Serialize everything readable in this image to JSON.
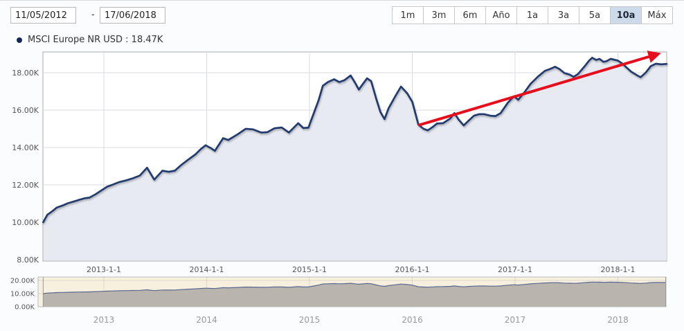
{
  "toolbar": {
    "date_from": "11/05/2012",
    "date_separator": "-",
    "date_to": "17/06/2018",
    "range_buttons": [
      {
        "label": "1m",
        "selected": false
      },
      {
        "label": "3m",
        "selected": false
      },
      {
        "label": "6m",
        "selected": false
      },
      {
        "label": "Año",
        "selected": false
      },
      {
        "label": "1a",
        "selected": false
      },
      {
        "label": "3a",
        "selected": false
      },
      {
        "label": "5a",
        "selected": false
      },
      {
        "label": "10a",
        "selected": true
      },
      {
        "label": "Máx",
        "selected": false
      }
    ]
  },
  "legend": {
    "text": "MSCI Europe NR USD : 18.47K",
    "series_name": "MSCI Europe NR USD",
    "current_value": "18.47K",
    "marker_color": "#16265c"
  },
  "chart_data": {
    "type": "area",
    "title": "",
    "x_unit": "decimal_year",
    "y_unit": "thousands (K)",
    "x_range": [
      2012.41,
      2018.475
    ],
    "y_axis": {
      "tick_values": [
        8,
        10,
        12,
        14,
        16,
        18
      ],
      "tick_labels": [
        "8.00K",
        "10.00K",
        "12.00K",
        "14.00K",
        "16.00K",
        "18.00K"
      ],
      "grid": true
    },
    "x_axis": {
      "tick_years": [
        2013,
        2014,
        2015,
        2016,
        2017,
        2018
      ],
      "tick_labels": [
        "2013-1-1",
        "2014-1-1",
        "2015-1-1",
        "2016-1-1",
        "2017-1-1",
        "2018-1-1"
      ],
      "grid": true
    },
    "series": [
      {
        "name": "MSCI Europe NR USD",
        "current_value": "18.47K",
        "points": [
          [
            2012.41,
            10.0
          ],
          [
            2012.45,
            10.4
          ],
          [
            2012.5,
            10.6
          ],
          [
            2012.54,
            10.78
          ],
          [
            2012.6,
            10.9
          ],
          [
            2012.65,
            11.02
          ],
          [
            2012.7,
            11.1
          ],
          [
            2012.76,
            11.2
          ],
          [
            2012.81,
            11.28
          ],
          [
            2012.86,
            11.32
          ],
          [
            2012.92,
            11.5
          ],
          [
            2012.97,
            11.68
          ],
          [
            2013.03,
            11.9
          ],
          [
            2013.08,
            12.0
          ],
          [
            2013.15,
            12.15
          ],
          [
            2013.22,
            12.25
          ],
          [
            2013.28,
            12.35
          ],
          [
            2013.35,
            12.5
          ],
          [
            2013.42,
            12.92
          ],
          [
            2013.49,
            12.28
          ],
          [
            2013.57,
            12.76
          ],
          [
            2013.63,
            12.7
          ],
          [
            2013.69,
            12.76
          ],
          [
            2013.75,
            13.05
          ],
          [
            2013.82,
            13.35
          ],
          [
            2013.89,
            13.63
          ],
          [
            2013.94,
            13.9
          ],
          [
            2013.99,
            14.12
          ],
          [
            2014.04,
            13.97
          ],
          [
            2014.08,
            13.82
          ],
          [
            2014.16,
            14.5
          ],
          [
            2014.21,
            14.4
          ],
          [
            2014.3,
            14.7
          ],
          [
            2014.38,
            15.0
          ],
          [
            2014.45,
            14.97
          ],
          [
            2014.53,
            14.8
          ],
          [
            2014.59,
            14.82
          ],
          [
            2014.66,
            15.03
          ],
          [
            2014.73,
            15.07
          ],
          [
            2014.8,
            14.8
          ],
          [
            2014.89,
            15.3
          ],
          [
            2014.94,
            15.04
          ],
          [
            2014.99,
            15.06
          ],
          [
            2015.04,
            15.8
          ],
          [
            2015.09,
            16.55
          ],
          [
            2015.13,
            17.3
          ],
          [
            2015.18,
            17.5
          ],
          [
            2015.24,
            17.65
          ],
          [
            2015.29,
            17.5
          ],
          [
            2015.34,
            17.6
          ],
          [
            2015.4,
            17.85
          ],
          [
            2015.44,
            17.5
          ],
          [
            2015.48,
            17.1
          ],
          [
            2015.52,
            17.4
          ],
          [
            2015.56,
            17.7
          ],
          [
            2015.6,
            17.55
          ],
          [
            2015.65,
            16.6
          ],
          [
            2015.69,
            15.9
          ],
          [
            2015.73,
            15.52
          ],
          [
            2015.77,
            16.1
          ],
          [
            2015.83,
            16.7
          ],
          [
            2015.89,
            17.26
          ],
          [
            2015.95,
            16.9
          ],
          [
            2016.0,
            16.45
          ],
          [
            2016.06,
            15.22
          ],
          [
            2016.11,
            15.0
          ],
          [
            2016.15,
            14.92
          ],
          [
            2016.2,
            15.1
          ],
          [
            2016.24,
            15.28
          ],
          [
            2016.3,
            15.3
          ],
          [
            2016.37,
            15.55
          ],
          [
            2016.41,
            15.84
          ],
          [
            2016.45,
            15.5
          ],
          [
            2016.5,
            15.18
          ],
          [
            2016.55,
            15.45
          ],
          [
            2016.6,
            15.7
          ],
          [
            2016.65,
            15.78
          ],
          [
            2016.7,
            15.78
          ],
          [
            2016.76,
            15.7
          ],
          [
            2016.81,
            15.68
          ],
          [
            2016.86,
            15.84
          ],
          [
            2016.93,
            16.4
          ],
          [
            2016.99,
            16.74
          ],
          [
            2017.03,
            16.55
          ],
          [
            2017.09,
            16.95
          ],
          [
            2017.15,
            17.4
          ],
          [
            2017.22,
            17.78
          ],
          [
            2017.29,
            18.1
          ],
          [
            2017.34,
            18.2
          ],
          [
            2017.39,
            18.32
          ],
          [
            2017.43,
            18.2
          ],
          [
            2017.48,
            17.98
          ],
          [
            2017.53,
            17.9
          ],
          [
            2017.57,
            17.78
          ],
          [
            2017.61,
            17.92
          ],
          [
            2017.67,
            18.3
          ],
          [
            2017.72,
            18.65
          ],
          [
            2017.75,
            18.8
          ],
          [
            2017.79,
            18.68
          ],
          [
            2017.82,
            18.74
          ],
          [
            2017.86,
            18.58
          ],
          [
            2017.89,
            18.62
          ],
          [
            2017.93,
            18.74
          ],
          [
            2018.0,
            18.65
          ],
          [
            2018.04,
            18.5
          ],
          [
            2018.08,
            18.3
          ],
          [
            2018.13,
            18.05
          ],
          [
            2018.19,
            17.85
          ],
          [
            2018.22,
            17.76
          ],
          [
            2018.27,
            18.0
          ],
          [
            2018.32,
            18.35
          ],
          [
            2018.37,
            18.48
          ],
          [
            2018.42,
            18.45
          ],
          [
            2018.475,
            18.47
          ]
        ]
      }
    ],
    "annotation": {
      "type": "trend-arrow",
      "color": "#e60e1c",
      "width": 4,
      "from": [
        2016.06,
        15.19
      ],
      "to": [
        2018.39,
        19.0
      ]
    },
    "navigator": {
      "y_tick_values": [
        0,
        10,
        20
      ],
      "y_tick_labels": [
        "0.00K",
        "10.00K",
        "20.00K"
      ],
      "x_tick_years": [
        2013,
        2014,
        2015,
        2016,
        2017,
        2018
      ],
      "x_tick_labels": [
        "2013",
        "2014",
        "2015",
        "2016",
        "2017",
        "2018"
      ],
      "selected_range": "full"
    },
    "colors": {
      "line": "#243a6e",
      "area": "#e8eaf2",
      "plot_bg": "#ffffff",
      "grid": "#d9dbdf",
      "border": "#aaaaaa",
      "nav_bg": "#f7f0df",
      "nav_area": "#b9b5ae",
      "nav_line": "#5a6890",
      "nav_grid": "rgba(0,0,0,0.10)",
      "axis_text": "#555555",
      "nav_year_text": "#999999"
    },
    "legend_position": "top-left"
  }
}
